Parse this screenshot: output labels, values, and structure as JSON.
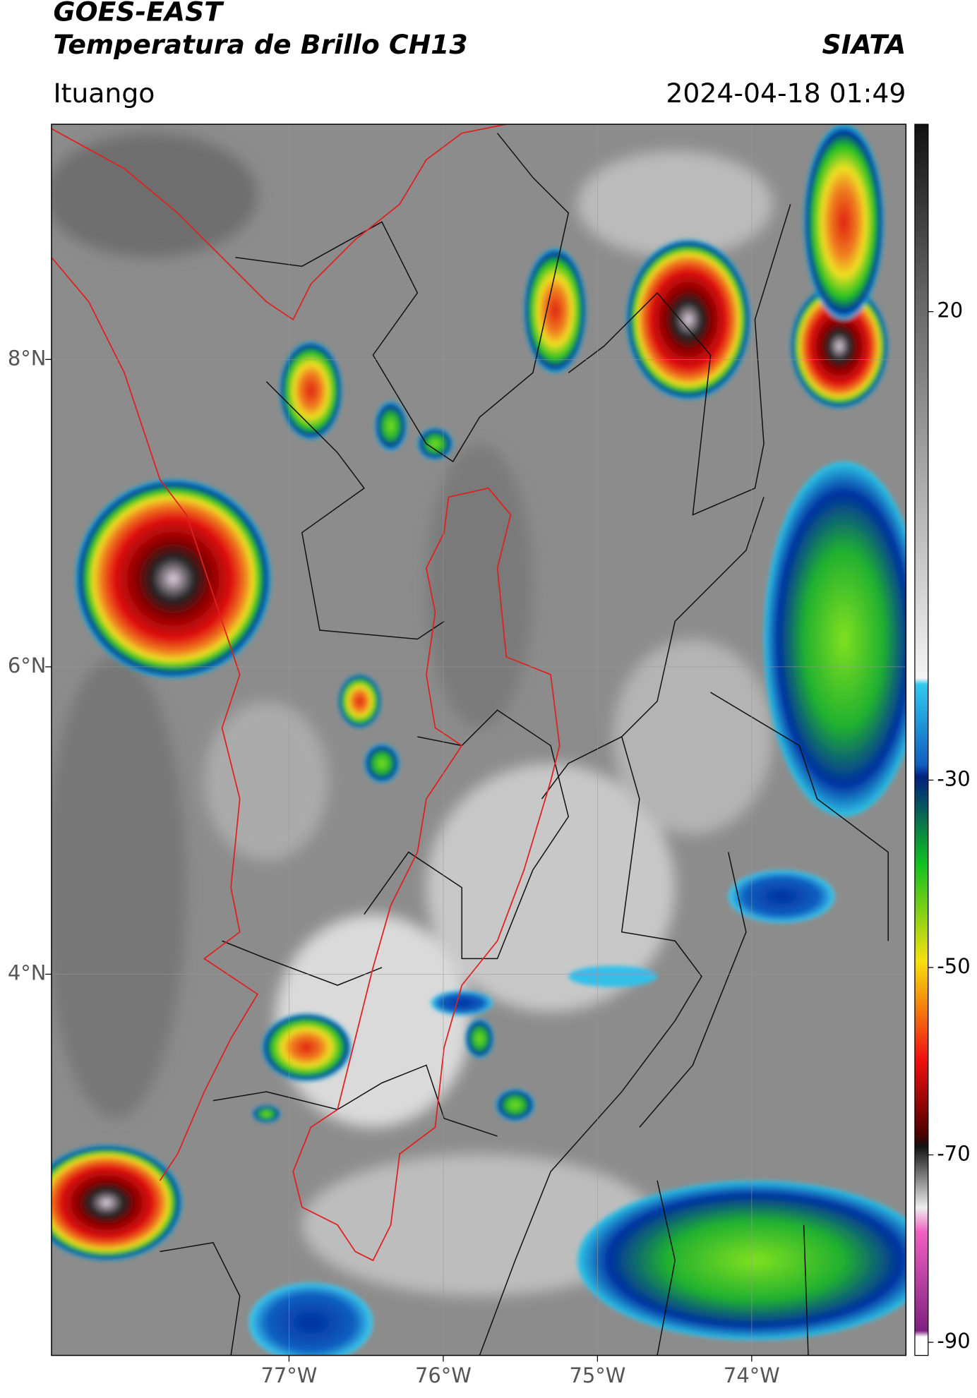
{
  "header": {
    "title": "GOES-EAST",
    "subtitle": "Temperatura de Brillo CH13",
    "brand": "SIATA",
    "location": "Ituango",
    "datetime": "2024-04-18 01:49"
  },
  "map": {
    "xlim": [
      -78.54,
      -73.0
    ],
    "ylim": [
      1.52,
      9.53
    ],
    "xticks": [
      {
        "value": -77,
        "label": "77°W"
      },
      {
        "value": -76,
        "label": "76°W"
      },
      {
        "value": -75,
        "label": "75°W"
      },
      {
        "value": -74,
        "label": "74°W"
      }
    ],
    "yticks": [
      {
        "value": 8,
        "label": "8°N"
      },
      {
        "value": 6,
        "label": "6°N"
      },
      {
        "value": 4,
        "label": "4°N"
      }
    ]
  },
  "colorbar": {
    "lim": [
      -91.4,
      40
    ],
    "ticks": [
      20,
      -30,
      -50,
      -70,
      -90
    ]
  }
}
